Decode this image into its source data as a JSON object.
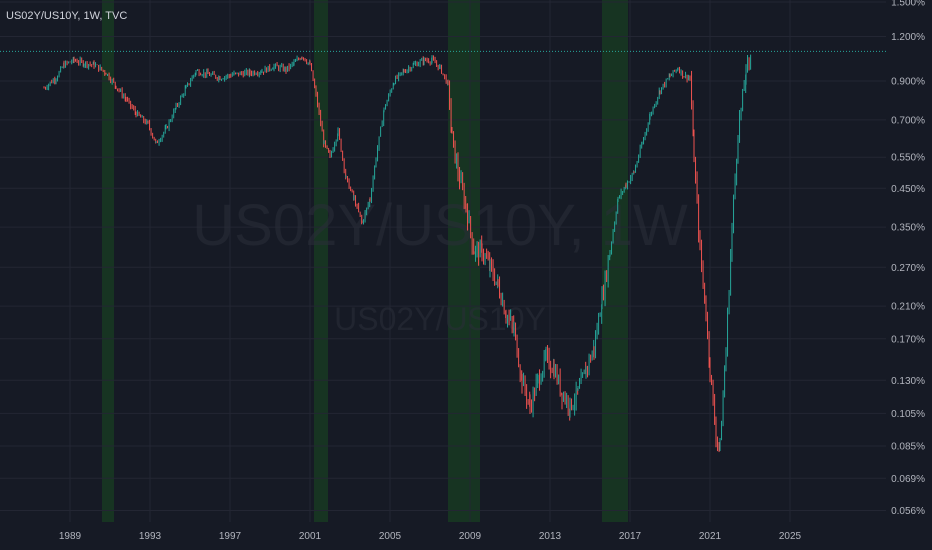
{
  "header": {
    "title": "US02Y/US10Y, 1W, TVC"
  },
  "watermark": {
    "main": "US02Y/US10Y, 1W",
    "sub": "US02Y/US10Y"
  },
  "colors": {
    "background": "#161a25",
    "grid": "#232633",
    "up": "#26a69a",
    "down": "#ef5350",
    "recession": "#1b5e20",
    "last_price_line": "#26a69a"
  },
  "chart_data": {
    "type": "candlestick-line",
    "title": "US02Y/US10Y, 1W, TVC",
    "y_scale": "log",
    "ylim": [
      0.052,
      1.52
    ],
    "xlim": [
      1985.5,
      2029.8
    ],
    "grid": true,
    "x_ticks": [
      "1989",
      "1993",
      "1997",
      "2001",
      "2005",
      "2009",
      "2013",
      "2017",
      "2021",
      "2025"
    ],
    "y_ticks": [
      "1.500%",
      "1.200%",
      "0.900%",
      "0.700%",
      "0.550%",
      "0.450%",
      "0.350%",
      "0.270%",
      "0.210%",
      "0.170%",
      "0.130%",
      "0.105%",
      "0.085%",
      "0.069%",
      "0.056%"
    ],
    "last_value": 1.09,
    "recession_shading": [
      [
        1990.6,
        1991.2
      ],
      [
        2001.2,
        2001.9
      ],
      [
        2007.9,
        2009.5
      ],
      [
        2015.6,
        2016.9
      ]
    ],
    "series": [
      {
        "points": [
          [
            1987.7,
            0.86
          ],
          [
            1988.3,
            0.92
          ],
          [
            1988.7,
            1.0
          ],
          [
            1989.2,
            1.03
          ],
          [
            1989.7,
            1.01
          ],
          [
            1990.2,
            1.0
          ],
          [
            1990.8,
            0.95
          ],
          [
            1991.3,
            0.87
          ],
          [
            1991.8,
            0.8
          ],
          [
            1992.3,
            0.73
          ],
          [
            1992.9,
            0.68
          ],
          [
            1993.3,
            0.6
          ],
          [
            1993.8,
            0.66
          ],
          [
            1994.3,
            0.76
          ],
          [
            1994.8,
            0.86
          ],
          [
            1995.3,
            0.96
          ],
          [
            1995.9,
            0.94
          ],
          [
            1996.5,
            0.92
          ],
          [
            1997.2,
            0.94
          ],
          [
            1998.0,
            0.95
          ],
          [
            1998.6,
            0.96
          ],
          [
            1999.2,
            0.99
          ],
          [
            1999.8,
            0.97
          ],
          [
            2000.2,
            1.01
          ],
          [
            2000.6,
            1.06
          ],
          [
            2001.0,
            1.0
          ],
          [
            2001.3,
            0.82
          ],
          [
            2001.7,
            0.6
          ],
          [
            2002.0,
            0.55
          ],
          [
            2002.4,
            0.65
          ],
          [
            2002.8,
            0.48
          ],
          [
            2003.2,
            0.42
          ],
          [
            2003.6,
            0.36
          ],
          [
            2004.0,
            0.42
          ],
          [
            2004.3,
            0.55
          ],
          [
            2004.7,
            0.75
          ],
          [
            2005.2,
            0.9
          ],
          [
            2005.7,
            0.96
          ],
          [
            2006.2,
            1.0
          ],
          [
            2006.7,
            1.03
          ],
          [
            2007.1,
            1.03
          ],
          [
            2007.5,
            0.98
          ],
          [
            2007.9,
            0.88
          ],
          [
            2008.1,
            0.62
          ],
          [
            2008.4,
            0.5
          ],
          [
            2008.8,
            0.4
          ],
          [
            2009.2,
            0.3
          ],
          [
            2009.6,
            0.3
          ],
          [
            2010.0,
            0.27
          ],
          [
            2010.4,
            0.24
          ],
          [
            2010.8,
            0.2
          ],
          [
            2011.2,
            0.18
          ],
          [
            2011.6,
            0.13
          ],
          [
            2012.0,
            0.11
          ],
          [
            2012.4,
            0.13
          ],
          [
            2012.8,
            0.15
          ],
          [
            2013.2,
            0.14
          ],
          [
            2013.6,
            0.12
          ],
          [
            2014.0,
            0.11
          ],
          [
            2014.4,
            0.12
          ],
          [
            2014.8,
            0.14
          ],
          [
            2015.2,
            0.16
          ],
          [
            2015.6,
            0.22
          ],
          [
            2016.0,
            0.3
          ],
          [
            2016.4,
            0.42
          ],
          [
            2016.8,
            0.46
          ],
          [
            2017.2,
            0.5
          ],
          [
            2017.6,
            0.6
          ],
          [
            2018.0,
            0.72
          ],
          [
            2018.5,
            0.85
          ],
          [
            2019.0,
            0.93
          ],
          [
            2019.4,
            0.98
          ],
          [
            2019.7,
            0.93
          ],
          [
            2020.0,
            0.92
          ],
          [
            2020.2,
            0.55
          ],
          [
            2020.5,
            0.3
          ],
          [
            2020.8,
            0.2
          ],
          [
            2021.0,
            0.14
          ],
          [
            2021.3,
            0.09
          ],
          [
            2021.5,
            0.085
          ],
          [
            2021.8,
            0.16
          ],
          [
            2022.1,
            0.35
          ],
          [
            2022.4,
            0.65
          ],
          [
            2022.8,
            0.95
          ],
          [
            2023.1,
            1.09
          ]
        ]
      }
    ]
  }
}
